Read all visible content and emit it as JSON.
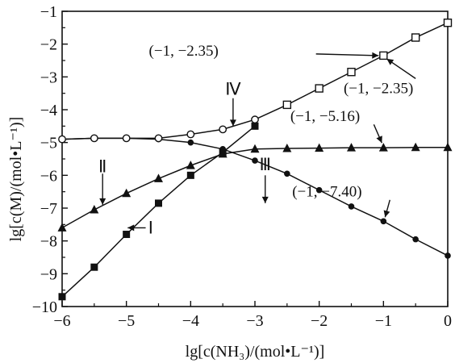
{
  "chart_data": {
    "type": "line",
    "title": "",
    "xlabel": "lg[c(NH₃)/(mol•L⁻¹)]",
    "ylabel": "lg[c(M)/(mol•L⁻¹)]",
    "xlim": [
      -6,
      0
    ],
    "ylim": [
      -10,
      -1
    ],
    "xticks": [
      "−6",
      "−5",
      "−4",
      "−3",
      "−2",
      "−1",
      "0"
    ],
    "yticks": [
      "−1",
      "−2",
      "−3",
      "−4",
      "−5",
      "−6",
      "−7",
      "−8",
      "−9",
      "−10"
    ],
    "grid": false,
    "series": [
      {
        "name": "Ⅰ",
        "marker": "filled-square",
        "x": [
          -6,
          -5.5,
          -5,
          -4.5,
          -4,
          -3.5,
          -3
        ],
        "y": [
          -9.7,
          -8.8,
          -7.8,
          -6.85,
          -6.0,
          -5.3,
          -4.5
        ]
      },
      {
        "name": "Ⅱ",
        "marker": "filled-triangle",
        "x": [
          -6,
          -5.5,
          -5,
          -4.5,
          -4,
          -3.5,
          -3,
          -2.5,
          -2,
          -1.5,
          -1,
          -0.5,
          0
        ],
        "y": [
          -7.6,
          -7.05,
          -6.55,
          -6.1,
          -5.7,
          -5.35,
          -5.2,
          -5.18,
          -5.17,
          -5.16,
          -5.16,
          -5.15,
          -5.15
        ]
      },
      {
        "name": "Ⅲ",
        "marker": "filled-circle",
        "x": [
          -6,
          -5.5,
          -5,
          -4.5,
          -4,
          -3.5,
          -3,
          -2.5,
          -2,
          -1.5,
          -1,
          -0.5,
          0
        ],
        "y": [
          -4.9,
          -4.87,
          -4.87,
          -4.9,
          -5.0,
          -5.2,
          -5.55,
          -5.95,
          -6.45,
          -6.95,
          -7.4,
          -7.95,
          -8.45
        ]
      },
      {
        "name": "Ⅳ",
        "marker": "open-circle-then-open-square",
        "x": [
          -6,
          -5.5,
          -5,
          -4.5,
          -4,
          -3.5,
          -3,
          -2.5,
          -2,
          -1.5,
          -1,
          -0.5,
          0
        ],
        "y": [
          -4.9,
          -4.87,
          -4.87,
          -4.87,
          -4.75,
          -4.6,
          -4.3,
          -3.85,
          -3.35,
          -2.85,
          -2.35,
          -1.8,
          -1.35
        ]
      }
    ],
    "series_labels": [
      {
        "text": "Ⅰ",
        "near": "x=-4.8, y=-7.6"
      },
      {
        "text": "Ⅱ",
        "near": "x=-5.4, y=-6.0"
      },
      {
        "text": "Ⅲ",
        "near": "x=-2.8, y=-6.0"
      },
      {
        "text": "Ⅳ",
        "near": "x=-3.4, y=-3.7"
      }
    ],
    "annotations": [
      {
        "text": "(−1, −2.35)",
        "x": -1,
        "y": -2.35
      },
      {
        "text": "(−1, −2.35)",
        "x": -1,
        "y": -2.35
      },
      {
        "text": "(−1, −5.16)",
        "x": -1,
        "y": -5.16
      },
      {
        "text": "(−1, −7.40)",
        "x": -1,
        "y": -7.4
      }
    ]
  }
}
